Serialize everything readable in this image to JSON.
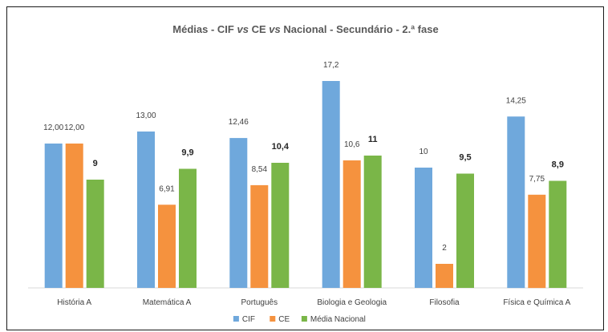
{
  "chart_data": {
    "type": "bar",
    "title_parts": [
      "Médias - CIF ",
      "vs",
      " CE ",
      "vs",
      " Nacional - Secundário -  2.ª fase"
    ],
    "categories": [
      "História A",
      "Matemática A",
      "Português",
      "Biologia e Geologia",
      "Filosofia",
      "Física e Química A"
    ],
    "series": [
      {
        "name": "CIF",
        "color": "#6fa8dc",
        "values": [
          12.0,
          13.0,
          12.46,
          17.2,
          10,
          14.25
        ],
        "labels": [
          "12,00",
          "13,00",
          "12,46",
          "17,2",
          "10",
          "14,25"
        ],
        "bold_labels": false
      },
      {
        "name": "CE",
        "color": "#f5923e",
        "values": [
          12.0,
          6.91,
          8.54,
          10.6,
          2,
          7.75
        ],
        "labels": [
          "12,00",
          "6,91",
          "8,54",
          "10,6",
          "2",
          "7,75"
        ],
        "bold_labels": false
      },
      {
        "name": "Média Nacional",
        "color": "#7ab648",
        "values": [
          9,
          9.9,
          10.4,
          11,
          9.5,
          8.9
        ],
        "labels": [
          "9",
          "9,9",
          "10,4",
          "11",
          "9,5",
          "8,9"
        ],
        "bold_labels": true
      }
    ],
    "ylim": [
      0,
      17.2
    ],
    "grid": false,
    "legend_position": "bottom"
  }
}
